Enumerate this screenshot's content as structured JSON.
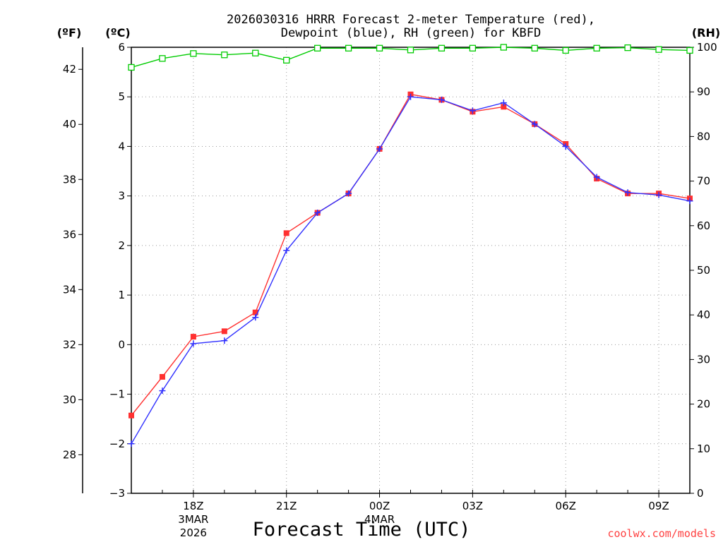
{
  "chart_data": {
    "type": "line",
    "title_line1": "2026030316 HRRR Forecast 2-meter Temperature (red),",
    "title_line2": "Dewpoint (blue), RH (green) for KBFD",
    "unit_left_f": "(ºF)",
    "unit_left_c": "(ºC)",
    "unit_right": "(RH)",
    "xlabel": "Forecast Time (UTC)",
    "credit": "coolwx.com/models",
    "x_hours": [
      16,
      17,
      18,
      19,
      20,
      21,
      22,
      23,
      24,
      25,
      26,
      27,
      28,
      29,
      30,
      31,
      32,
      33,
      34
    ],
    "xlim": [
      16,
      34
    ],
    "x_ticks": [
      {
        "hour": 18,
        "label": "18Z",
        "sub1": "3MAR",
        "sub2": "2026"
      },
      {
        "hour": 21,
        "label": "21Z",
        "sub1": "",
        "sub2": ""
      },
      {
        "hour": 24,
        "label": "00Z",
        "sub1": "4MAR",
        "sub2": ""
      },
      {
        "hour": 27,
        "label": "03Z",
        "sub1": "",
        "sub2": ""
      },
      {
        "hour": 30,
        "label": "06Z",
        "sub1": "",
        "sub2": ""
      },
      {
        "hour": 33,
        "label": "09Z",
        "sub1": "",
        "sub2": ""
      }
    ],
    "ylim_c": [
      -3,
      6
    ],
    "yticks_c": [
      -3,
      -2,
      -1,
      0,
      1,
      2,
      3,
      4,
      5,
      6
    ],
    "yticks_c_labels": [
      "−3",
      "−2",
      "−1",
      "0",
      "1",
      "2",
      "3",
      "4",
      "5",
      "6"
    ],
    "yticks_f": [
      28,
      30,
      32,
      34,
      36,
      38,
      40,
      42
    ],
    "yticks_f_labels": [
      "28",
      "30",
      "32",
      "34",
      "36",
      "38",
      "40",
      "42"
    ],
    "ylim_rh": [
      0,
      100
    ],
    "yticks_rh": [
      0,
      10,
      20,
      30,
      40,
      50,
      60,
      70,
      80,
      90,
      100
    ],
    "yticks_rh_labels": [
      "0",
      "10",
      "20",
      "30",
      "40",
      "50",
      "60",
      "70",
      "80",
      "90",
      "100"
    ],
    "grid": true,
    "series": [
      {
        "name": "Temperature",
        "unit": "C",
        "color": "#ff3030",
        "marker": "square-filled",
        "values": [
          -1.43,
          -0.65,
          0.16,
          0.27,
          0.65,
          2.25,
          2.66,
          3.05,
          3.95,
          5.05,
          4.94,
          4.7,
          4.8,
          4.45,
          4.05,
          3.35,
          3.05,
          3.05,
          2.95
        ]
      },
      {
        "name": "Dewpoint",
        "unit": "C",
        "color": "#3030ff",
        "marker": "plus",
        "values": [
          -2.0,
          -0.93,
          0.02,
          0.08,
          0.55,
          1.9,
          2.66,
          3.05,
          3.95,
          5.0,
          4.94,
          4.72,
          4.88,
          4.45,
          4.0,
          3.38,
          3.07,
          3.02,
          2.9
        ]
      },
      {
        "name": "RH",
        "unit": "%",
        "color": "#00cc00",
        "marker": "square-open",
        "values": [
          95.5,
          97.5,
          98.6,
          98.3,
          98.7,
          97.1,
          99.8,
          99.8,
          99.8,
          99.4,
          99.8,
          99.8,
          100.0,
          99.8,
          99.3,
          99.8,
          99.9,
          99.5,
          99.3
        ]
      }
    ]
  }
}
